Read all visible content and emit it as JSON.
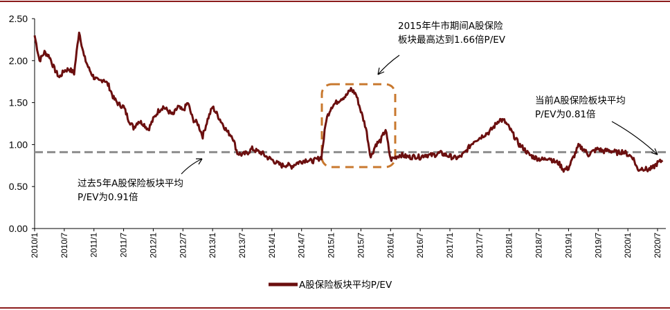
{
  "chart_data": {
    "type": "line",
    "title": "",
    "xlabel": "",
    "ylabel": "",
    "ylim": [
      0,
      2.5
    ],
    "yticks": [
      "0.00",
      "0.50",
      "1.00",
      "1.50",
      "2.00",
      "2.50"
    ],
    "xticks": [
      "2010/1",
      "2010/7",
      "2011/1",
      "2011/7",
      "2012/1",
      "2012/7",
      "2013/1",
      "2013/7",
      "2014/1",
      "2014/7",
      "2015/1",
      "2015/7",
      "2016/1",
      "2016/7",
      "2017/1",
      "2017/7",
      "2018/1",
      "2018/7",
      "2019/1",
      "2019/7",
      "2020/1",
      "2020/7"
    ],
    "grid": false,
    "legend_position": "bottom",
    "colors": {
      "series": "#6b0f0f",
      "reference": "#8c8c8c",
      "box": "#c8782e",
      "frame": "#8b1a1a"
    },
    "series": [
      {
        "name": "A股保险板块平均P/EV",
        "points": [
          [
            "2010/1",
            2.3
          ],
          [
            "2010/2",
            2.0
          ],
          [
            "2010/3",
            2.1
          ],
          [
            "2010/4",
            2.05
          ],
          [
            "2010/5",
            1.9
          ],
          [
            "2010/6",
            1.8
          ],
          [
            "2010/7",
            1.88
          ],
          [
            "2010/8",
            1.9
          ],
          [
            "2010/9",
            1.85
          ],
          [
            "2010/10",
            2.35
          ],
          [
            "2010/11",
            2.05
          ],
          [
            "2010/12",
            1.9
          ],
          [
            "2011/1",
            1.8
          ],
          [
            "2011/2",
            1.75
          ],
          [
            "2011/3",
            1.78
          ],
          [
            "2011/4",
            1.7
          ],
          [
            "2011/5",
            1.55
          ],
          [
            "2011/6",
            1.48
          ],
          [
            "2011/7",
            1.45
          ],
          [
            "2011/8",
            1.3
          ],
          [
            "2011/9",
            1.2
          ],
          [
            "2011/10",
            1.28
          ],
          [
            "2011/11",
            1.25
          ],
          [
            "2011/12",
            1.18
          ],
          [
            "2012/1",
            1.3
          ],
          [
            "2012/2",
            1.4
          ],
          [
            "2012/3",
            1.45
          ],
          [
            "2012/4",
            1.4
          ],
          [
            "2012/5",
            1.35
          ],
          [
            "2012/6",
            1.45
          ],
          [
            "2012/7",
            1.4
          ],
          [
            "2012/8",
            1.5
          ],
          [
            "2012/9",
            1.3
          ],
          [
            "2012/10",
            1.25
          ],
          [
            "2012/11",
            1.1
          ],
          [
            "2012/12",
            1.3
          ],
          [
            "2013/1",
            1.45
          ],
          [
            "2013/2",
            1.35
          ],
          [
            "2013/3",
            1.25
          ],
          [
            "2013/4",
            1.15
          ],
          [
            "2013/5",
            1.1
          ],
          [
            "2013/6",
            0.9
          ],
          [
            "2013/7",
            0.88
          ],
          [
            "2013/8",
            0.9
          ],
          [
            "2013/9",
            0.95
          ],
          [
            "2013/10",
            0.92
          ],
          [
            "2013/11",
            0.9
          ],
          [
            "2013/12",
            0.85
          ],
          [
            "2014/1",
            0.82
          ],
          [
            "2014/2",
            0.78
          ],
          [
            "2014/3",
            0.75
          ],
          [
            "2014/4",
            0.76
          ],
          [
            "2014/5",
            0.74
          ],
          [
            "2014/6",
            0.78
          ],
          [
            "2014/7",
            0.8
          ],
          [
            "2014/8",
            0.82
          ],
          [
            "2014/9",
            0.8
          ],
          [
            "2014/10",
            0.82
          ],
          [
            "2014/11",
            0.85
          ],
          [
            "2014/12",
            1.3
          ],
          [
            "2015/1",
            1.45
          ],
          [
            "2015/2",
            1.5
          ],
          [
            "2015/3",
            1.55
          ],
          [
            "2015/4",
            1.58
          ],
          [
            "2015/5",
            1.66
          ],
          [
            "2015/6",
            1.6
          ],
          [
            "2015/7",
            1.4
          ],
          [
            "2015/8",
            1.2
          ],
          [
            "2015/9",
            0.85
          ],
          [
            "2015/10",
            1.0
          ],
          [
            "2015/11",
            1.05
          ],
          [
            "2015/12",
            1.18
          ],
          [
            "2016/1",
            0.82
          ],
          [
            "2016/2",
            0.85
          ],
          [
            "2016/3",
            0.88
          ],
          [
            "2016/4",
            0.86
          ],
          [
            "2016/5",
            0.85
          ],
          [
            "2016/6",
            0.86
          ],
          [
            "2016/7",
            0.85
          ],
          [
            "2016/8",
            0.88
          ],
          [
            "2016/9",
            0.87
          ],
          [
            "2016/10",
            0.88
          ],
          [
            "2016/11",
            0.9
          ],
          [
            "2016/12",
            0.88
          ],
          [
            "2017/1",
            0.86
          ],
          [
            "2017/2",
            0.84
          ],
          [
            "2017/3",
            0.85
          ],
          [
            "2017/4",
            0.9
          ],
          [
            "2017/5",
            0.98
          ],
          [
            "2017/6",
            1.05
          ],
          [
            "2017/7",
            1.08
          ],
          [
            "2017/8",
            1.12
          ],
          [
            "2017/9",
            1.15
          ],
          [
            "2017/10",
            1.22
          ],
          [
            "2017/11",
            1.3
          ],
          [
            "2017/12",
            1.28
          ],
          [
            "2018/1",
            1.2
          ],
          [
            "2018/2",
            1.1
          ],
          [
            "2018/3",
            1.0
          ],
          [
            "2018/4",
            0.95
          ],
          [
            "2018/5",
            0.88
          ],
          [
            "2018/6",
            0.85
          ],
          [
            "2018/7",
            0.83
          ],
          [
            "2018/8",
            0.82
          ],
          [
            "2018/9",
            0.85
          ],
          [
            "2018/10",
            0.8
          ],
          [
            "2018/11",
            0.78
          ],
          [
            "2018/12",
            0.7
          ],
          [
            "2019/1",
            0.72
          ],
          [
            "2019/2",
            0.85
          ],
          [
            "2019/3",
            0.98
          ],
          [
            "2019/4",
            0.95
          ],
          [
            "2019/5",
            0.88
          ],
          [
            "2019/6",
            0.92
          ],
          [
            "2019/7",
            0.95
          ],
          [
            "2019/8",
            0.92
          ],
          [
            "2019/9",
            0.93
          ],
          [
            "2019/10",
            0.92
          ],
          [
            "2019/11",
            0.9
          ],
          [
            "2019/12",
            0.92
          ],
          [
            "2020/1",
            0.88
          ],
          [
            "2020/2",
            0.85
          ],
          [
            "2020/3",
            0.7
          ],
          [
            "2020/4",
            0.72
          ],
          [
            "2020/5",
            0.7
          ],
          [
            "2020/6",
            0.72
          ],
          [
            "2020/7",
            0.78
          ],
          [
            "2020/8",
            0.81
          ]
        ]
      },
      {
        "name": "",
        "type": "reference",
        "value": 0.91
      }
    ],
    "annotations": [
      {
        "id": "bull",
        "lines": [
          "2015年牛市期间A股保险",
          "板块最高达到1.66倍P/EV"
        ]
      },
      {
        "id": "avg5",
        "lines": [
          "过去5年A股保险板块平均",
          "P/EV为0.91倍"
        ]
      },
      {
        "id": "current",
        "lines": [
          "当前A股保险板块平均",
          "P/EV为0.81倍"
        ]
      }
    ]
  }
}
